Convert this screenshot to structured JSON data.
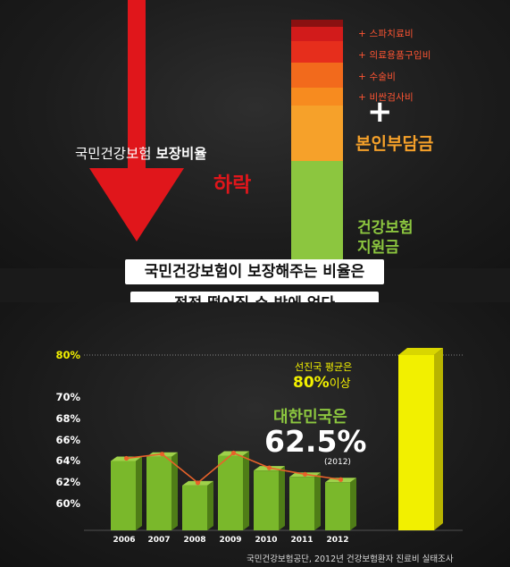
{
  "top": {
    "title_normal": "국민건강보험",
    "title_bold": "보장비율",
    "decline_label": "하락",
    "stack_items": [
      {
        "label": "+ 스파치료비",
        "color": "#d21b1b"
      },
      {
        "label": "+ 의료용품구입비",
        "color": "#e62e1c"
      },
      {
        "label": "+ 수술비",
        "color": "#f26a1c"
      },
      {
        "label": "+ 비싼검사비",
        "color": "#f78b1f"
      }
    ],
    "plus_sign": "+",
    "out_of_pocket_label": "본인부담금",
    "insurance_label_line1": "건강보험",
    "insurance_label_line2": "지원금",
    "colors": {
      "arrow": "#e0161b",
      "out_of_pocket": "#f6a12a",
      "insurance": "#8cc63f"
    }
  },
  "caption": {
    "line1": "국민건강보험이 보장해주는 비율은",
    "line2": "점점 떨어질 수 밖에 없다"
  },
  "chart_data": {
    "type": "bar",
    "categories": [
      "2006",
      "2007",
      "2008",
      "2009",
      "2010",
      "2011",
      "2012"
    ],
    "values": [
      64.5,
      64.9,
      62.2,
      65.0,
      63.6,
      63.0,
      62.5
    ],
    "ytick_labels": [
      "60%",
      "62%",
      "64%",
      "66%",
      "68%",
      "70%",
      "80%"
    ],
    "ylim": [
      60,
      80
    ],
    "comparison_bar": {
      "label_line1": "선진국 평균은",
      "label_value": "80%",
      "label_suffix": "이상",
      "value": 80
    },
    "highlight": {
      "label": "대한민국은",
      "value": "62.5%",
      "year_note": "(2012)"
    },
    "bar_color": "#7ab82b",
    "line_color": "#e8622a",
    "comparison_color": "#f2f000"
  },
  "source": "국민건강보험공단, 2012년 건강보험환자 진료비 실태조사"
}
